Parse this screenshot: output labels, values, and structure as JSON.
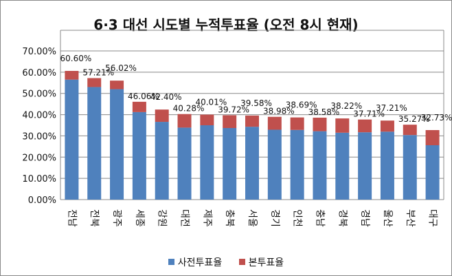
{
  "chart_data": {
    "type": "bar",
    "stacked": true,
    "title": "6·3 대선 시도별 누적투표율 (오전 8시 현재)",
    "xlabel": "",
    "ylabel": "",
    "ylim": [
      0,
      70
    ],
    "yticks": [
      "0.00%",
      "10.00%",
      "20.00%",
      "30.00%",
      "40.00%",
      "50.00%",
      "60.00%",
      "70.00%"
    ],
    "grid": true,
    "legend_position": "bottom",
    "categories": [
      "전남",
      "전북",
      "광주",
      "세종",
      "강원",
      "대전",
      "제주",
      "충북",
      "서울",
      "경기",
      "인천",
      "충남",
      "경북",
      "경남",
      "울산",
      "부산",
      "대구"
    ],
    "series": [
      {
        "name": "사전투표율",
        "color": "#4f81bd",
        "values": [
          56.5,
          53.0,
          52.0,
          41.2,
          36.6,
          33.9,
          35.0,
          33.7,
          34.3,
          32.9,
          32.8,
          32.2,
          31.5,
          31.7,
          32.0,
          30.4,
          25.6
        ]
      },
      {
        "name": "본투표율",
        "color": "#c0504d",
        "values": [
          4.1,
          4.21,
          4.02,
          4.86,
          5.8,
          6.38,
          5.01,
          6.02,
          5.28,
          6.08,
          5.89,
          6.38,
          6.72,
          6.01,
          5.21,
          4.87,
          7.13
        ]
      }
    ],
    "totals": [
      60.6,
      57.21,
      56.02,
      46.06,
      42.4,
      40.28,
      40.01,
      39.72,
      39.58,
      38.98,
      38.69,
      38.58,
      38.22,
      37.71,
      37.21,
      35.27,
      32.73
    ],
    "total_labels": [
      "60.60%",
      "57.21%",
      "56.02%",
      "46.06%",
      "42.40%",
      "40.28%",
      "40.01%",
      "39.72%",
      "39.58%",
      "38.98%",
      "38.69%",
      "38.58%",
      "38.22%",
      "37.71%",
      "37.21%",
      "35.27%",
      "32.73%"
    ]
  }
}
